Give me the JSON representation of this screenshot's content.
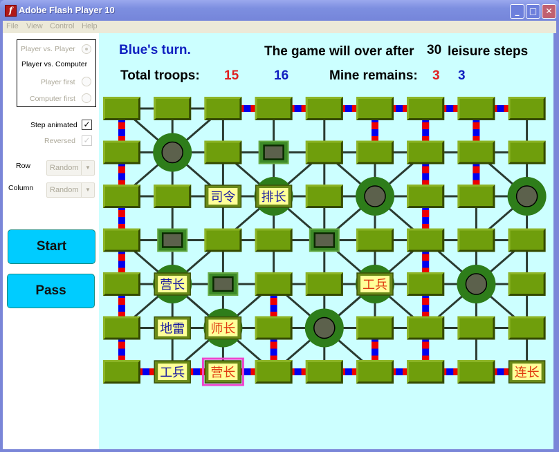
{
  "window": {
    "title": "Adobe Flash Player 10",
    "app_icon": "flash-icon"
  },
  "menu": [
    "File",
    "View",
    "Control",
    "Help"
  ],
  "left_panel": {
    "mode_options": [
      {
        "label": "Player vs. Player",
        "selected": true,
        "disabled": true
      },
      {
        "label": "Player vs. Computer"
      }
    ],
    "first_options": [
      {
        "label": "Player first",
        "disabled": true
      },
      {
        "label": "Computer first",
        "disabled": true
      }
    ],
    "step_animated": {
      "label": "Step animated",
      "checked": true
    },
    "reversed": {
      "label": "Reversed",
      "checked": true,
      "disabled": true
    },
    "row": {
      "label": "Row",
      "value": "Random"
    },
    "column": {
      "label": "Column",
      "value": "Random"
    },
    "start_label": "Start",
    "pass_label": "Pass"
  },
  "status": {
    "turn": "Blue's turn.",
    "over_prefix": "The game will over after",
    "leisure_steps": "30",
    "over_suffix": "leisure steps",
    "troops_label": "Total troops:",
    "troops_red": "15",
    "troops_blue": "16",
    "mine_label": "Mine remains:",
    "mine_red": "3",
    "mine_blue": "3"
  },
  "colors": {
    "red": "#e02020",
    "blue": "#1020c0",
    "board_bg": "#ccffff",
    "post": "#6b9a0c",
    "camp": "#2e7d1a",
    "button": "#00ccff",
    "selected": "#ee44cc"
  },
  "board": {
    "rows": 7,
    "cols": 9,
    "camps": [
      [
        1,
        1
      ],
      [
        2,
        3
      ],
      [
        2,
        5
      ],
      [
        2,
        8
      ],
      [
        4,
        1
      ],
      [
        4,
        5
      ],
      [
        4,
        7
      ],
      [
        5,
        2
      ],
      [
        5,
        4
      ]
    ],
    "hidden": [
      [
        1,
        3
      ],
      [
        3,
        1
      ],
      [
        3,
        4
      ],
      [
        4,
        2
      ]
    ],
    "pieces": [
      {
        "r": 2,
        "c": 2,
        "label": "司令",
        "side": "blue"
      },
      {
        "r": 2,
        "c": 3,
        "label": "排长",
        "side": "blue"
      },
      {
        "r": 4,
        "c": 1,
        "label": "营长",
        "side": "blue"
      },
      {
        "r": 4,
        "c": 5,
        "label": "工兵",
        "side": "red"
      },
      {
        "r": 5,
        "c": 1,
        "label": "地雷",
        "side": "blue"
      },
      {
        "r": 5,
        "c": 2,
        "label": "师长",
        "side": "red"
      },
      {
        "r": 6,
        "c": 1,
        "label": "工兵",
        "side": "blue"
      },
      {
        "r": 6,
        "c": 2,
        "label": "营长",
        "side": "red",
        "selected": true
      },
      {
        "r": 6,
        "c": 8,
        "label": "连长",
        "side": "red"
      }
    ],
    "railways_h": [
      [
        0,
        2
      ],
      [
        0,
        3
      ],
      [
        0,
        4
      ],
      [
        0,
        5
      ],
      [
        0,
        6
      ],
      [
        0,
        7
      ],
      [
        6,
        0
      ],
      [
        6,
        1
      ],
      [
        6,
        2
      ],
      [
        6,
        3
      ],
      [
        6,
        4
      ],
      [
        6,
        5
      ],
      [
        6,
        6
      ],
      [
        6,
        7
      ]
    ],
    "railways_v": [
      [
        0,
        0
      ],
      [
        1,
        0
      ],
      [
        2,
        0
      ],
      [
        3,
        0
      ],
      [
        4,
        0
      ],
      [
        5,
        0
      ],
      [
        4,
        3
      ],
      [
        5,
        3
      ],
      [
        0,
        5
      ],
      [
        5,
        5
      ],
      [
        0,
        6
      ],
      [
        1,
        6
      ],
      [
        2,
        6
      ],
      [
        3,
        6
      ],
      [
        4,
        6
      ],
      [
        5,
        6
      ],
      [
        0,
        7
      ],
      [
        1,
        7
      ]
    ]
  }
}
